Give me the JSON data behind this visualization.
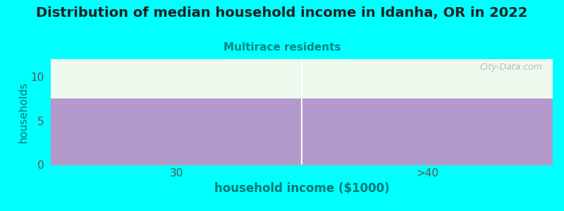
{
  "title": "Distribution of median household income in Idanha, OR in 2022",
  "subtitle": "Multirace residents",
  "categories": [
    "30",
    ">40"
  ],
  "values": [
    7.5,
    7.5
  ],
  "bar_color": "#b399cc",
  "plot_bg_color": "#edfaed",
  "fig_bg_color": "#00ffff",
  "xlabel": "household income ($1000)",
  "ylabel": "households",
  "ylim": [
    0,
    12
  ],
  "yticks": [
    0,
    5,
    10
  ],
  "title_fontsize": 14,
  "subtitle_fontsize": 11,
  "subtitle_color": "#008888",
  "axis_label_color": "#007777",
  "tick_color": "#555555",
  "watermark": "City-Data.com"
}
